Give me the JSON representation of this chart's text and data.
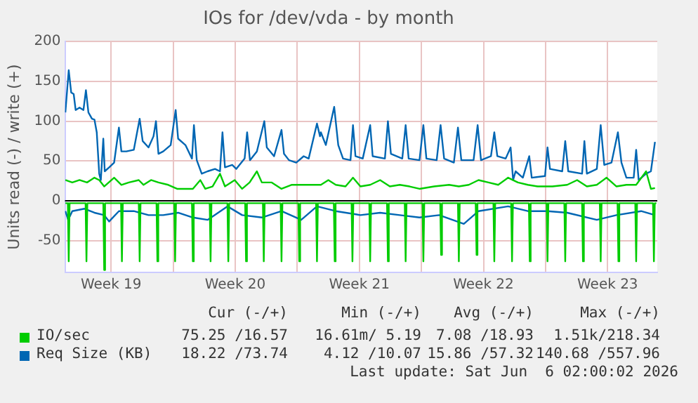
{
  "chart_data": {
    "type": "line",
    "title": "IOs for /dev/vda - by month",
    "ylabel": "Units read (-) / write (+)",
    "xlim": [
      "2026-05-03T21:36",
      "2026-06-06T07:12"
    ],
    "xticks": [
      {
        "value": "2026-05-06T12:00",
        "label": "Week 19"
      },
      {
        "value": "2026-05-10",
        "label": null
      },
      {
        "value": "2026-05-13T12:00",
        "label": "Week 20"
      },
      {
        "value": "2026-05-17",
        "label": null
      },
      {
        "value": "2026-05-20T12:00",
        "label": "Week 21"
      },
      {
        "value": "2026-05-24",
        "label": null
      },
      {
        "value": "2026-05-27T12:00",
        "label": "Week 22"
      },
      {
        "value": "2026-05-31",
        "label": null
      },
      {
        "value": "2026-06-03T12:00",
        "label": "Week 23"
      }
    ],
    "ylim": [
      -90,
      200
    ],
    "yticks": [
      -50,
      0,
      50,
      100,
      150,
      200
    ],
    "grid": true,
    "legend": "bottom",
    "marker": "none",
    "line_style": "solid",
    "ref_lines": [
      {
        "axis": "y",
        "value": 0,
        "color": "#000000"
      }
    ],
    "series": [
      {
        "name": "IO/sec",
        "color": "#00cc00",
        "x": [
          "2026-05-03T22:05",
          "2026-05-04T07:26",
          "2026-05-04T17:17",
          "2026-05-05T03:22",
          "2026-05-05T13:26",
          "2026-05-05T19:55",
          "2026-05-06T02:38",
          "2026-05-06T16:05",
          "2026-05-07T01:55",
          "2026-05-07T12:00",
          "2026-05-08T01:26",
          "2026-05-08T07:55",
          "2026-05-08T18:00",
          "2026-05-09T04:05",
          "2026-05-09T17:17",
          "2026-05-10T05:17",
          "2026-05-10T16:34",
          "2026-05-11T02:38",
          "2026-05-11T12:43",
          "2026-05-11T19:26",
          "2026-05-12T05:17",
          "2026-05-12T15:22",
          "2026-05-12T22:05",
          "2026-05-13T11:17",
          "2026-05-13T21:22",
          "2026-05-14T07:26",
          "2026-05-14T17:17",
          "2026-05-15T00:00",
          "2026-05-15T13:26",
          "2026-05-16T02:38",
          "2026-05-16T16:05",
          "2026-05-17T12:00",
          "2026-05-18T07:55",
          "2026-05-18T18:00",
          "2026-05-19T04:05",
          "2026-05-19T17:17",
          "2026-05-20T03:22",
          "2026-05-20T13:26",
          "2026-05-21T02:38",
          "2026-05-21T16:05",
          "2026-05-22T05:17",
          "2026-05-22T18:43",
          "2026-05-23T07:55",
          "2026-05-23T21:22",
          "2026-05-24T17:17",
          "2026-05-25T13:26",
          "2026-05-26T02:38",
          "2026-05-26T16:05",
          "2026-05-27T05:17",
          "2026-05-27T18:43",
          "2026-05-28T07:55",
          "2026-05-28T21:22",
          "2026-05-29T10:34",
          "2026-05-30T00:00",
          "2026-05-30T13:26",
          "2026-05-31T09:22",
          "2026-06-01T05:17",
          "2026-06-01T18:43",
          "2026-06-02T07:55",
          "2026-06-02T21:22",
          "2026-06-03T10:34",
          "2026-06-04T00:00",
          "2026-06-04T13:26",
          "2026-06-05T02:38",
          "2026-06-05T16:05",
          "2026-06-05T22:34",
          "2026-06-06T04:05"
        ],
        "values": [
          26,
          23,
          26,
          23,
          29,
          26,
          18,
          29,
          20,
          23,
          26,
          20,
          26,
          23,
          20,
          15,
          15,
          15,
          26,
          15,
          18,
          34,
          18,
          26,
          15,
          23,
          37,
          23,
          23,
          15,
          20,
          20,
          20,
          26,
          20,
          18,
          29,
          18,
          20,
          26,
          18,
          20,
          18,
          15,
          18,
          20,
          18,
          20,
          26,
          23,
          20,
          29,
          23,
          20,
          18,
          18,
          20,
          26,
          18,
          20,
          29,
          18,
          20,
          20,
          37,
          15,
          16
        ]
      },
      {
        "color": "#00cc00",
        "x": [
          "2026-05-03T22:05",
          "2026-05-04T01:26",
          "2026-05-04T02:38",
          "2026-05-04T03:50",
          "2026-05-05T01:26",
          "2026-05-05T02:38",
          "2026-05-05T03:50",
          "2026-05-06T01:26",
          "2026-05-06T02:38",
          "2026-05-06T03:50",
          "2026-05-07T01:26",
          "2026-05-07T02:38",
          "2026-05-07T03:50",
          "2026-05-08T01:26",
          "2026-05-08T02:38",
          "2026-05-08T03:50",
          "2026-05-09T01:26",
          "2026-05-09T02:38",
          "2026-05-09T03:50",
          "2026-05-10T01:26",
          "2026-05-10T02:38",
          "2026-05-10T03:50",
          "2026-05-11T01:26",
          "2026-05-11T02:38",
          "2026-05-11T03:50",
          "2026-05-12T01:26",
          "2026-05-12T02:38",
          "2026-05-12T03:50",
          "2026-05-13T01:26",
          "2026-05-13T02:38",
          "2026-05-13T03:50",
          "2026-05-14T01:26",
          "2026-05-14T02:38",
          "2026-05-14T03:50",
          "2026-05-15T01:26",
          "2026-05-15T02:38",
          "2026-05-15T03:50",
          "2026-05-16T01:26",
          "2026-05-16T02:38",
          "2026-05-16T03:50",
          "2026-05-17T01:26",
          "2026-05-17T02:38",
          "2026-05-17T03:50",
          "2026-05-18T01:26",
          "2026-05-18T02:38",
          "2026-05-18T03:50",
          "2026-05-19T01:26",
          "2026-05-19T02:38",
          "2026-05-19T03:50",
          "2026-05-20T01:26",
          "2026-05-20T02:38",
          "2026-05-20T03:50",
          "2026-05-21T01:26",
          "2026-05-21T02:38",
          "2026-05-21T03:50",
          "2026-05-22T01:26",
          "2026-05-22T02:38",
          "2026-05-22T03:50",
          "2026-05-23T01:26",
          "2026-05-23T02:38",
          "2026-05-23T03:50",
          "2026-05-24T01:26",
          "2026-05-24T02:38",
          "2026-05-24T03:50",
          "2026-05-25T01:26",
          "2026-05-25T02:38",
          "2026-05-25T03:50",
          "2026-05-26T01:26",
          "2026-05-26T02:38",
          "2026-05-26T03:50",
          "2026-05-27T01:26",
          "2026-05-27T02:38",
          "2026-05-27T03:50",
          "2026-05-28T01:26",
          "2026-05-28T02:38",
          "2026-05-28T03:50",
          "2026-05-29T01:26",
          "2026-05-29T02:38",
          "2026-05-29T03:50",
          "2026-05-30T01:26",
          "2026-05-30T02:38",
          "2026-05-30T03:50",
          "2026-05-31T01:26",
          "2026-05-31T02:38",
          "2026-05-31T03:50",
          "2026-06-01T01:26",
          "2026-06-01T02:38",
          "2026-06-01T03:50",
          "2026-06-02T01:26",
          "2026-06-02T02:38",
          "2026-06-02T03:50",
          "2026-06-03T01:26",
          "2026-06-03T02:38",
          "2026-06-03T03:50",
          "2026-06-04T01:26",
          "2026-06-04T02:38",
          "2026-06-04T03:50",
          "2026-06-05T01:26",
          "2026-06-05T02:38",
          "2026-06-05T03:50",
          "2026-06-06T01:26",
          "2026-06-06T02:38",
          "2026-06-06T03:50",
          "2026-06-06T06:00"
        ],
        "values": [
          -3,
          -3,
          -76,
          -3,
          -3,
          -76,
          -3,
          -3,
          -87,
          -3,
          -3,
          -76,
          -3,
          -3,
          -76,
          -3,
          -3,
          -76,
          -3,
          -3,
          -76,
          -3,
          -3,
          -76,
          -3,
          -3,
          -76,
          -3,
          -3,
          -76,
          -3,
          -3,
          -76,
          -3,
          -3,
          -76,
          -3,
          -3,
          -76,
          -3,
          -3,
          -76,
          -3,
          -3,
          -76,
          -3,
          -3,
          -76,
          -3,
          -3,
          -76,
          -3,
          -3,
          -76,
          -3,
          -3,
          -76,
          -3,
          -3,
          -76,
          -3,
          -3,
          -76,
          -3,
          -3,
          -68,
          -3,
          -3,
          -76,
          -3,
          -3,
          -68,
          -3,
          -3,
          -76,
          -3,
          -3,
          -76,
          -3,
          -3,
          -76,
          -3,
          -3,
          -76,
          -3,
          -3,
          -76,
          -3,
          -3,
          -76,
          -3,
          -3,
          -76,
          -3,
          -3,
          -76,
          -3,
          -3,
          -76,
          -3,
          -3,
          -76,
          -3,
          -3
        ]
      },
      {
        "name": "Req Size (KB)",
        "color": "#0066b3",
        "x": [
          "2026-05-03T22:05",
          "2026-05-04T02:38",
          "2026-05-04T06:00",
          "2026-05-04T09:22",
          "2026-05-04T12:00",
          "2026-05-04T17:17",
          "2026-05-04T22:34",
          "2026-05-05T01:55",
          "2026-05-05T05:17",
          "2026-05-05T10:05",
          "2026-05-05T13:26",
          "2026-05-05T16:34",
          "2026-05-05T19:55",
          "2026-05-05T22:05",
          "2026-05-06T01:26",
          "2026-05-06T03:22",
          "2026-05-06T09:22",
          "2026-05-06T16:05",
          "2026-05-06T22:34",
          "2026-05-07T01:55",
          "2026-05-07T08:38",
          "2026-05-07T18:43",
          "2026-05-08T02:38",
          "2026-05-08T06:43",
          "2026-05-08T14:38",
          "2026-05-08T21:22",
          "2026-05-09T00:43",
          "2026-05-09T04:05",
          "2026-05-09T10:34",
          "2026-05-09T20:38",
          "2026-05-10T03:22",
          "2026-05-10T06:43",
          "2026-05-10T16:34",
          "2026-05-11T01:26",
          "2026-05-11T04:05",
          "2026-05-11T07:55",
          "2026-05-11T14:38",
          "2026-05-11T22:34",
          "2026-05-12T08:38",
          "2026-05-12T15:22",
          "2026-05-12T18:43",
          "2026-05-12T22:05",
          "2026-05-13T07:55",
          "2026-05-13T13:26",
          "2026-05-14T00:43",
          "2026-05-14T04:05",
          "2026-05-14T07:55",
          "2026-05-14T17:17",
          "2026-05-15T03:22",
          "2026-05-15T06:43",
          "2026-05-15T16:34",
          "2026-05-16T02:38",
          "2026-05-16T06:00",
          "2026-05-16T12:43",
          "2026-05-16T22:34",
          "2026-05-17T08:38",
          "2026-05-17T15:22",
          "2026-05-18T02:38",
          "2026-05-18T06:43",
          "2026-05-18T07:55",
          "2026-05-18T14:38",
          "2026-05-19T01:55",
          "2026-05-19T07:26",
          "2026-05-19T13:55",
          "2026-05-20T00:00",
          "2026-05-20T03:22",
          "2026-05-20T06:43",
          "2026-05-20T16:34",
          "2026-05-21T02:38",
          "2026-05-21T06:00",
          "2026-05-21T22:34",
          "2026-05-22T02:38",
          "2026-05-22T06:43",
          "2026-05-22T22:05",
          "2026-05-23T02:38",
          "2026-05-23T06:43",
          "2026-05-23T21:22",
          "2026-05-24T02:38",
          "2026-05-24T06:43",
          "2026-05-24T20:38",
          "2026-05-25T01:55",
          "2026-05-25T06:43",
          "2026-05-25T19:55",
          "2026-05-26T01:26",
          "2026-05-26T06:00",
          "2026-05-26T22:34",
          "2026-05-27T04:05",
          "2026-05-27T08:38",
          "2026-05-27T22:05",
          "2026-05-28T02:38",
          "2026-05-28T06:43",
          "2026-05-28T18:00",
          "2026-05-29T00:43",
          "2026-05-29T04:05",
          "2026-05-29T07:26",
          "2026-05-29T17:17",
          "2026-05-30T01:55",
          "2026-05-30T05:17",
          "2026-05-30T23:17",
          "2026-05-31T02:38",
          "2026-05-31T06:00",
          "2026-05-31T22:34",
          "2026-06-01T02:38",
          "2026-06-01T06:43",
          "2026-06-02T01:26",
          "2026-06-02T04:34",
          "2026-06-02T07:55",
          "2026-06-02T21:22",
          "2026-06-03T02:38",
          "2026-06-03T07:26",
          "2026-06-03T17:17",
          "2026-06-04T01:55",
          "2026-06-04T06:43",
          "2026-06-04T13:26",
          "2026-06-04T23:17",
          "2026-06-05T02:38",
          "2026-06-05T06:00",
          "2026-06-05T16:05",
          "2026-06-05T22:34",
          "2026-06-06T04:05"
        ],
        "values": [
          111,
          164,
          136,
          134,
          114,
          117,
          114,
          139,
          111,
          103,
          102,
          86,
          34,
          26,
          78,
          37,
          42,
          48,
          92,
          62,
          62,
          64,
          103,
          75,
          67,
          81,
          100,
          59,
          62,
          70,
          114,
          78,
          70,
          53,
          95,
          51,
          34,
          37,
          40,
          37,
          86,
          42,
          45,
          40,
          53,
          86,
          51,
          62,
          100,
          67,
          56,
          89,
          59,
          51,
          48,
          56,
          53,
          97,
          81,
          86,
          70,
          118,
          70,
          53,
          51,
          95,
          56,
          53,
          95,
          56,
          53,
          100,
          59,
          53,
          95,
          53,
          51,
          95,
          53,
          51,
          95,
          53,
          48,
          92,
          51,
          51,
          95,
          51,
          56,
          86,
          56,
          53,
          67,
          26,
          37,
          29,
          56,
          29,
          31,
          67,
          40,
          37,
          75,
          37,
          34,
          75,
          34,
          40,
          95,
          45,
          48,
          86,
          48,
          29,
          29,
          64,
          26,
          34,
          37,
          74
        ]
      },
      {
        "color": "#0066b3",
        "x": [
          "2026-05-03T22:05",
          "2026-05-04T01:55",
          "2026-05-04T07:26",
          "2026-05-05T00:00",
          "2026-05-05T13:26",
          "2026-05-06T02:38",
          "2026-05-06T09:22",
          "2026-05-06T22:34",
          "2026-05-07T18:43",
          "2026-05-08T14:38",
          "2026-05-09T10:34",
          "2026-05-10T06:43",
          "2026-05-11T02:38",
          "2026-05-11T22:34",
          "2026-05-13T01:26",
          "2026-05-13T21:22",
          "2026-05-15T00:00",
          "2026-05-16T02:38",
          "2026-05-17T05:17",
          "2026-05-18T02:38",
          "2026-05-19T04:05",
          "2026-05-20T13:26",
          "2026-05-21T16:05",
          "2026-05-22T18:43",
          "2026-05-23T21:22",
          "2026-05-25T00:00",
          "2026-05-26T09:22",
          "2026-05-27T05:17",
          "2026-05-28T21:22",
          "2026-05-30T00:00",
          "2026-05-31T02:38",
          "2026-06-01T05:17",
          "2026-06-02T21:22",
          "2026-06-04T00:00",
          "2026-06-05T09:22",
          "2026-06-06T04:05"
        ],
        "values": [
          -13,
          -24,
          -13,
          -10,
          -15,
          -18,
          -26,
          -13,
          -13,
          -18,
          -18,
          -15,
          -21,
          -24,
          -7,
          -18,
          -21,
          -13,
          -24,
          -7,
          -13,
          -18,
          -15,
          -18,
          -21,
          -18,
          -29,
          -13,
          -7,
          -13,
          -13,
          -15,
          -24,
          -18,
          -13,
          -18
        ]
      }
    ],
    "annotations": [
      "Cur (-/+)",
      "Min (-/+)",
      "Avg (-/+)",
      "Max (-/+)",
      "75.25 /16.57",
      "16.61m/ 5.19",
      "7.08 /18.93",
      "1.51k/218.34",
      "18.22 /73.74",
      "4.12 /10.07",
      "15.86 /57.32",
      "140.68 /557.96",
      "Last update: Sat Jun  6 02:00:02 2026"
    ]
  }
}
